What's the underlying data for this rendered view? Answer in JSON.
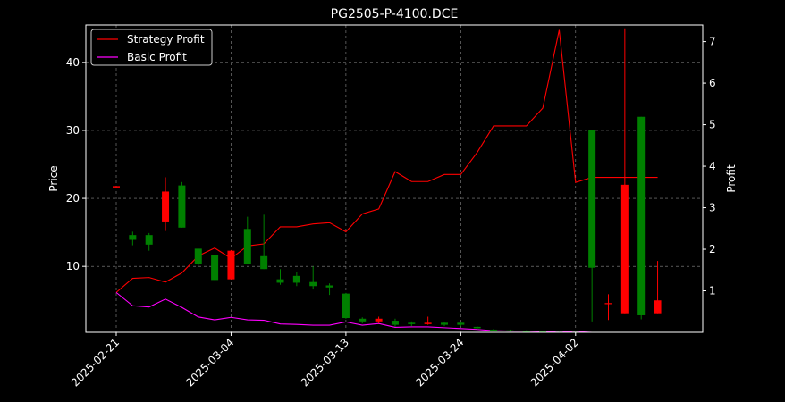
{
  "colors": {
    "background": "#000000",
    "axes_text": "#ffffff",
    "grid": "#8c8c8c",
    "strategy": "#ff0000",
    "basic": "#ff00ff",
    "candle_up": "#008000",
    "candle_down": "#ff0000"
  },
  "chart_data": {
    "type": "candlestick+line",
    "title": "PG2505-P-4100.DCE",
    "ylabel_left": "Price",
    "ylabel_right": "Profit",
    "ylim_left": [
      0.3,
      45.5
    ],
    "ylim_right": [
      0,
      7.4
    ],
    "yticks_left": [
      10,
      20,
      30,
      40
    ],
    "yticks_right": [
      1,
      2,
      3,
      4,
      5,
      6,
      7
    ],
    "x_tick_labels": [
      "2025-02-21",
      "2025-03-04",
      "2025-03-13",
      "2025-03-24",
      "2025-04-02"
    ],
    "x_tick_index": [
      0,
      7,
      14,
      21,
      28
    ],
    "grid": true,
    "legend_position": "upper-left",
    "legend": [
      {
        "name": "Strategy Profit",
        "color": "#ff0000"
      },
      {
        "name": "Basic Profit",
        "color": "#ff00ff"
      }
    ],
    "candles": [
      {
        "open": 21.8,
        "high": 21.8,
        "low": 21.6,
        "close": 21.6
      },
      {
        "open": 13.9,
        "high": 15.1,
        "low": 13.1,
        "close": 14.6
      },
      {
        "open": 13.2,
        "high": 14.9,
        "low": 12.3,
        "close": 14.6
      },
      {
        "open": 21.0,
        "high": 23.1,
        "low": 15.2,
        "close": 16.6
      },
      {
        "open": 15.7,
        "high": 22.4,
        "low": 15.7,
        "close": 21.9
      },
      {
        "open": 10.3,
        "high": 12.6,
        "low": 10.0,
        "close": 12.6
      },
      {
        "open": 8.0,
        "high": 11.6,
        "low": 8.0,
        "close": 11.6
      },
      {
        "open": 12.3,
        "high": 12.4,
        "low": 8.1,
        "close": 8.1
      },
      {
        "open": 10.3,
        "high": 17.3,
        "low": 10.3,
        "close": 15.5
      },
      {
        "open": 9.6,
        "high": 17.6,
        "low": 9.6,
        "close": 11.5
      },
      {
        "open": 7.6,
        "high": 9.6,
        "low": 7.3,
        "close": 8.1
      },
      {
        "open": 7.6,
        "high": 9.1,
        "low": 7.1,
        "close": 8.6
      },
      {
        "open": 7.1,
        "high": 10.0,
        "low": 6.6,
        "close": 7.7
      },
      {
        "open": 6.9,
        "high": 7.5,
        "low": 5.8,
        "close": 7.2
      },
      {
        "open": 2.4,
        "high": 6.1,
        "low": 2.3,
        "close": 6.0
      },
      {
        "open": 1.9,
        "high": 2.5,
        "low": 1.6,
        "close": 2.3
      },
      {
        "open": 2.3,
        "high": 2.6,
        "low": 1.6,
        "close": 1.9
      },
      {
        "open": 1.4,
        "high": 2.3,
        "low": 1.1,
        "close": 2.0
      },
      {
        "open": 1.5,
        "high": 1.9,
        "low": 1.2,
        "close": 1.7
      },
      {
        "open": 1.7,
        "high": 2.6,
        "low": 1.4,
        "close": 1.5
      },
      {
        "open": 1.4,
        "high": 1.8,
        "low": 1.2,
        "close": 1.7
      },
      {
        "open": 1.4,
        "high": 1.8,
        "low": 1.2,
        "close": 1.7
      },
      {
        "open": 0.9,
        "high": 1.2,
        "low": 0.7,
        "close": 1.1
      },
      {
        "open": 0.6,
        "high": 0.8,
        "low": 0.5,
        "close": 0.7
      },
      {
        "open": 0.5,
        "high": 0.7,
        "low": 0.4,
        "close": 0.6
      },
      {
        "open": 0.4,
        "high": 0.6,
        "low": 0.3,
        "close": 0.5
      },
      {
        "open": 0.4,
        "high": 0.5,
        "low": 0.3,
        "close": 0.5
      },
      {
        "open": 0.4,
        "high": 0.4,
        "low": 0.3,
        "close": 0.4
      },
      {
        "open": 0.4,
        "high": 0.5,
        "low": 0.3,
        "close": 0.4
      },
      {
        "open": 9.8,
        "high": 30.0,
        "low": 1.9,
        "close": 30.0
      },
      {
        "open": 4.6,
        "high": 5.9,
        "low": 2.1,
        "close": 4.5
      },
      {
        "open": 22.0,
        "high": 45.0,
        "low": 3.1,
        "close": 3.1
      },
      {
        "open": 2.8,
        "high": 32.0,
        "low": 2.2,
        "close": 32.0
      },
      {
        "open": 5.0,
        "high": 10.8,
        "low": 3.1,
        "close": 3.1
      }
    ],
    "series": [
      {
        "name": "Strategy Profit",
        "axis": "right",
        "values": [
          0.96,
          1.3,
          1.32,
          1.21,
          1.43,
          1.84,
          2.03,
          1.78,
          2.08,
          2.13,
          2.54,
          2.54,
          2.61,
          2.64,
          2.42,
          2.85,
          2.97,
          3.87,
          3.63,
          3.63,
          3.8,
          3.8,
          4.33,
          4.97,
          4.97,
          4.97,
          5.4,
          7.28,
          3.61,
          3.73,
          3.73,
          3.73,
          3.73,
          3.73
        ]
      },
      {
        "name": "Basic Profit",
        "axis": "right",
        "values": [
          0.96,
          0.64,
          0.61,
          0.8,
          0.6,
          0.37,
          0.3,
          0.36,
          0.3,
          0.29,
          0.2,
          0.19,
          0.17,
          0.17,
          0.25,
          0.17,
          0.21,
          0.12,
          0.13,
          0.13,
          0.11,
          0.09,
          0.07,
          0.04,
          0.03,
          0.03,
          0.02,
          0.01,
          0.02,
          0.0,
          0.0,
          0.0,
          0.0,
          0.0
        ]
      }
    ]
  }
}
